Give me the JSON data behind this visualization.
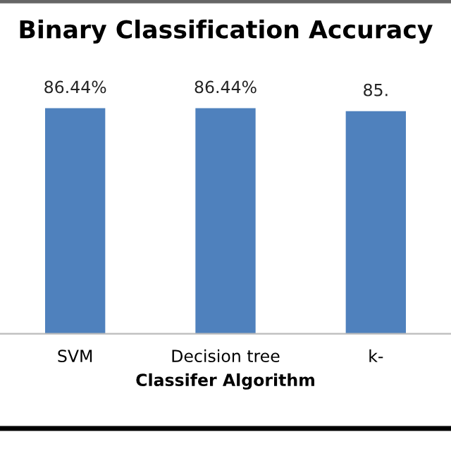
{
  "chart_data": {
    "type": "bar",
    "title": "Binary Classification Accuracy",
    "xlabel": "Classifer Algorithm",
    "categories": [
      "SVM",
      "Decision tree",
      "k-"
    ],
    "values": [
      86.44,
      86.44,
      85.3
    ],
    "value_labels": [
      "86.44%",
      "86.44%",
      "85."
    ],
    "color": "#4f81bd",
    "grid": false,
    "legend": false
  }
}
